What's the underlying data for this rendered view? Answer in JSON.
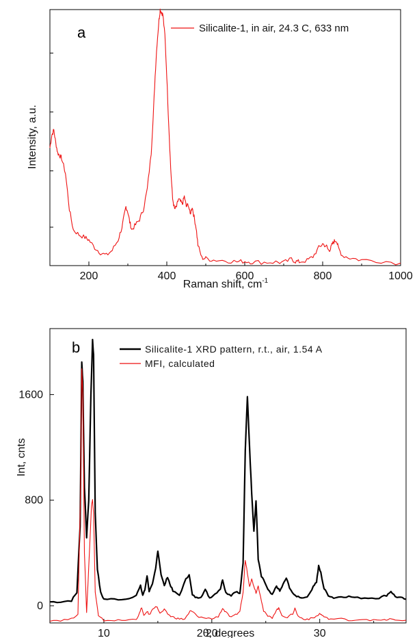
{
  "chart_data": [
    {
      "type": "line",
      "panel_label": "a",
      "xlabel": "Raman shift, cm",
      "xlabel_sup": "-1",
      "ylabel": "Intensity, a.u.",
      "xlim": [
        100,
        1000
      ],
      "ylim": [
        0,
        1
      ],
      "xticks": [
        200,
        400,
        600,
        800,
        1000
      ],
      "colors": {
        "series": "#ee1111"
      },
      "series": [
        {
          "name": "Silicalite-1, in air, 24.3 C, 633 nm",
          "color": "#ee1111",
          "x": [
            100,
            105,
            110,
            115,
            120,
            125,
            130,
            140,
            150,
            160,
            175,
            190,
            200,
            215,
            230,
            245,
            260,
            275,
            285,
            290,
            295,
            300,
            305,
            310,
            320,
            330,
            340,
            350,
            360,
            365,
            370,
            375,
            380,
            383,
            386,
            390,
            395,
            400,
            405,
            410,
            415,
            420,
            425,
            430,
            435,
            440,
            445,
            450,
            455,
            460,
            465,
            470,
            475,
            480,
            490,
            500,
            520,
            550,
            580,
            600,
            620,
            650,
            680,
            700,
            720,
            730,
            740,
            760,
            775,
            790,
            800,
            810,
            815,
            820,
            825,
            830,
            835,
            840,
            850,
            870,
            900,
            950,
            1000
          ],
          "y": [
            0.46,
            0.51,
            0.53,
            0.48,
            0.44,
            0.43,
            0.42,
            0.36,
            0.22,
            0.14,
            0.12,
            0.11,
            0.1,
            0.07,
            0.05,
            0.04,
            0.06,
            0.1,
            0.15,
            0.19,
            0.23,
            0.21,
            0.17,
            0.14,
            0.16,
            0.18,
            0.22,
            0.3,
            0.44,
            0.58,
            0.74,
            0.87,
            0.96,
            1.0,
            0.99,
            0.98,
            0.9,
            0.74,
            0.55,
            0.38,
            0.26,
            0.22,
            0.23,
            0.26,
            0.25,
            0.24,
            0.27,
            0.23,
            0.24,
            0.2,
            0.23,
            0.19,
            0.15,
            0.08,
            0.03,
            0.028,
            0.022,
            0.02,
            0.015,
            0.017,
            0.014,
            0.013,
            0.014,
            0.012,
            0.025,
            0.016,
            0.015,
            0.02,
            0.035,
            0.07,
            0.085,
            0.075,
            0.06,
            0.065,
            0.085,
            0.095,
            0.1,
            0.07,
            0.04,
            0.03,
            0.022,
            0.018,
            0.01
          ]
        }
      ]
    },
    {
      "type": "line",
      "panel_label": "b",
      "xlabel": "2θ, degrees",
      "ylabel": "Int, cnts",
      "xlim": [
        5,
        38
      ],
      "ylim": [
        -130,
        2100
      ],
      "xticks": [
        10,
        20,
        30
      ],
      "yticks": [
        0,
        800,
        1600
      ],
      "colors": {
        "series_1": "#000000",
        "series_2": "#ee1111"
      },
      "series": [
        {
          "name": "Silicalite-1 XRD pattern, r.t., air, 1.54 A",
          "color": "#000000",
          "x": [
            5,
            6,
            7,
            7.5,
            7.8,
            7.95,
            8.05,
            8.2,
            8.4,
            8.6,
            8.8,
            8.95,
            9.05,
            9.2,
            9.4,
            9.7,
            10,
            11,
            12,
            13,
            13.4,
            13.6,
            13.8,
            14,
            14.2,
            14.5,
            14.8,
            15,
            15.3,
            15.6,
            15.9,
            16.1,
            16.4,
            17,
            17.6,
            17.9,
            18.2,
            18.6,
            19,
            19.4,
            19.8,
            20.3,
            20.8,
            21,
            21.3,
            21.8,
            22.2,
            22.6,
            22.9,
            23.1,
            23.3,
            23.5,
            23.7,
            23.9,
            24.1,
            24.3,
            24.6,
            24.9,
            25.2,
            25.6,
            26,
            26.3,
            26.6,
            26.9,
            27.2,
            27.6,
            28,
            28.5,
            29,
            29.4,
            29.7,
            29.9,
            30.1,
            30.4,
            30.8,
            31.3,
            32,
            32.7,
            33.5,
            34.5,
            35.5,
            36.2,
            36.6,
            37,
            37.5,
            38
          ],
          "y": [
            30,
            30,
            40,
            100,
            600,
            1850,
            1700,
            900,
            520,
            800,
            1600,
            2010,
            1900,
            700,
            280,
            100,
            50,
            50,
            50,
            80,
            150,
            80,
            120,
            230,
            110,
            160,
            280,
            420,
            240,
            150,
            220,
            170,
            110,
            80,
            200,
            240,
            80,
            60,
            70,
            120,
            60,
            90,
            130,
            200,
            100,
            80,
            110,
            90,
            320,
            1180,
            1590,
            1200,
            850,
            560,
            800,
            350,
            220,
            180,
            120,
            80,
            150,
            110,
            160,
            210,
            140,
            80,
            70,
            60,
            80,
            150,
            180,
            300,
            250,
            130,
            80,
            60,
            70,
            70,
            60,
            60,
            60,
            80,
            110,
            70,
            60,
            50
          ]
        },
        {
          "name": "MFI, calculated",
          "color": "#ee1111",
          "x": [
            5,
            6,
            7,
            7.6,
            7.85,
            7.95,
            8.05,
            8.2,
            8.4,
            8.6,
            8.85,
            8.95,
            9.05,
            9.2,
            9.5,
            10,
            11,
            12,
            13,
            13.3,
            13.5,
            13.7,
            14,
            14.2,
            14.5,
            14.8,
            15,
            15.2,
            15.6,
            15.9,
            16.2,
            16.6,
            17,
            17.5,
            18,
            18.3,
            18.8,
            19.5,
            20,
            20.6,
            21,
            21.3,
            21.8,
            22.2,
            22.6,
            22.9,
            23.1,
            23.3,
            23.5,
            23.7,
            23.9,
            24.1,
            24.3,
            24.5,
            24.8,
            25.2,
            25.6,
            26,
            26.2,
            26.5,
            27,
            27.5,
            27.7,
            28,
            28.5,
            29,
            29.5,
            30,
            30.2,
            30.5,
            31,
            32,
            33,
            34,
            35,
            36,
            36.5,
            37,
            38
          ],
          "y": [
            -110,
            -110,
            -100,
            -60,
            900,
            1800,
            1600,
            400,
            -50,
            300,
            760,
            800,
            700,
            100,
            -80,
            -110,
            -110,
            -110,
            -100,
            -60,
            -10,
            -80,
            -40,
            -70,
            -30,
            0,
            -20,
            -60,
            -30,
            -60,
            -80,
            -90,
            -100,
            -100,
            -40,
            -50,
            -90,
            -90,
            -100,
            -80,
            -20,
            -50,
            -90,
            -70,
            -40,
            100,
            350,
            250,
            150,
            200,
            150,
            100,
            150,
            80,
            -40,
            -80,
            -90,
            -30,
            -20,
            -70,
            -90,
            -60,
            -20,
            -80,
            -100,
            -100,
            -90,
            -60,
            -70,
            -90,
            -100,
            -100,
            -110,
            -100,
            -110,
            -110,
            -100,
            -110,
            -110
          ]
        }
      ]
    }
  ]
}
